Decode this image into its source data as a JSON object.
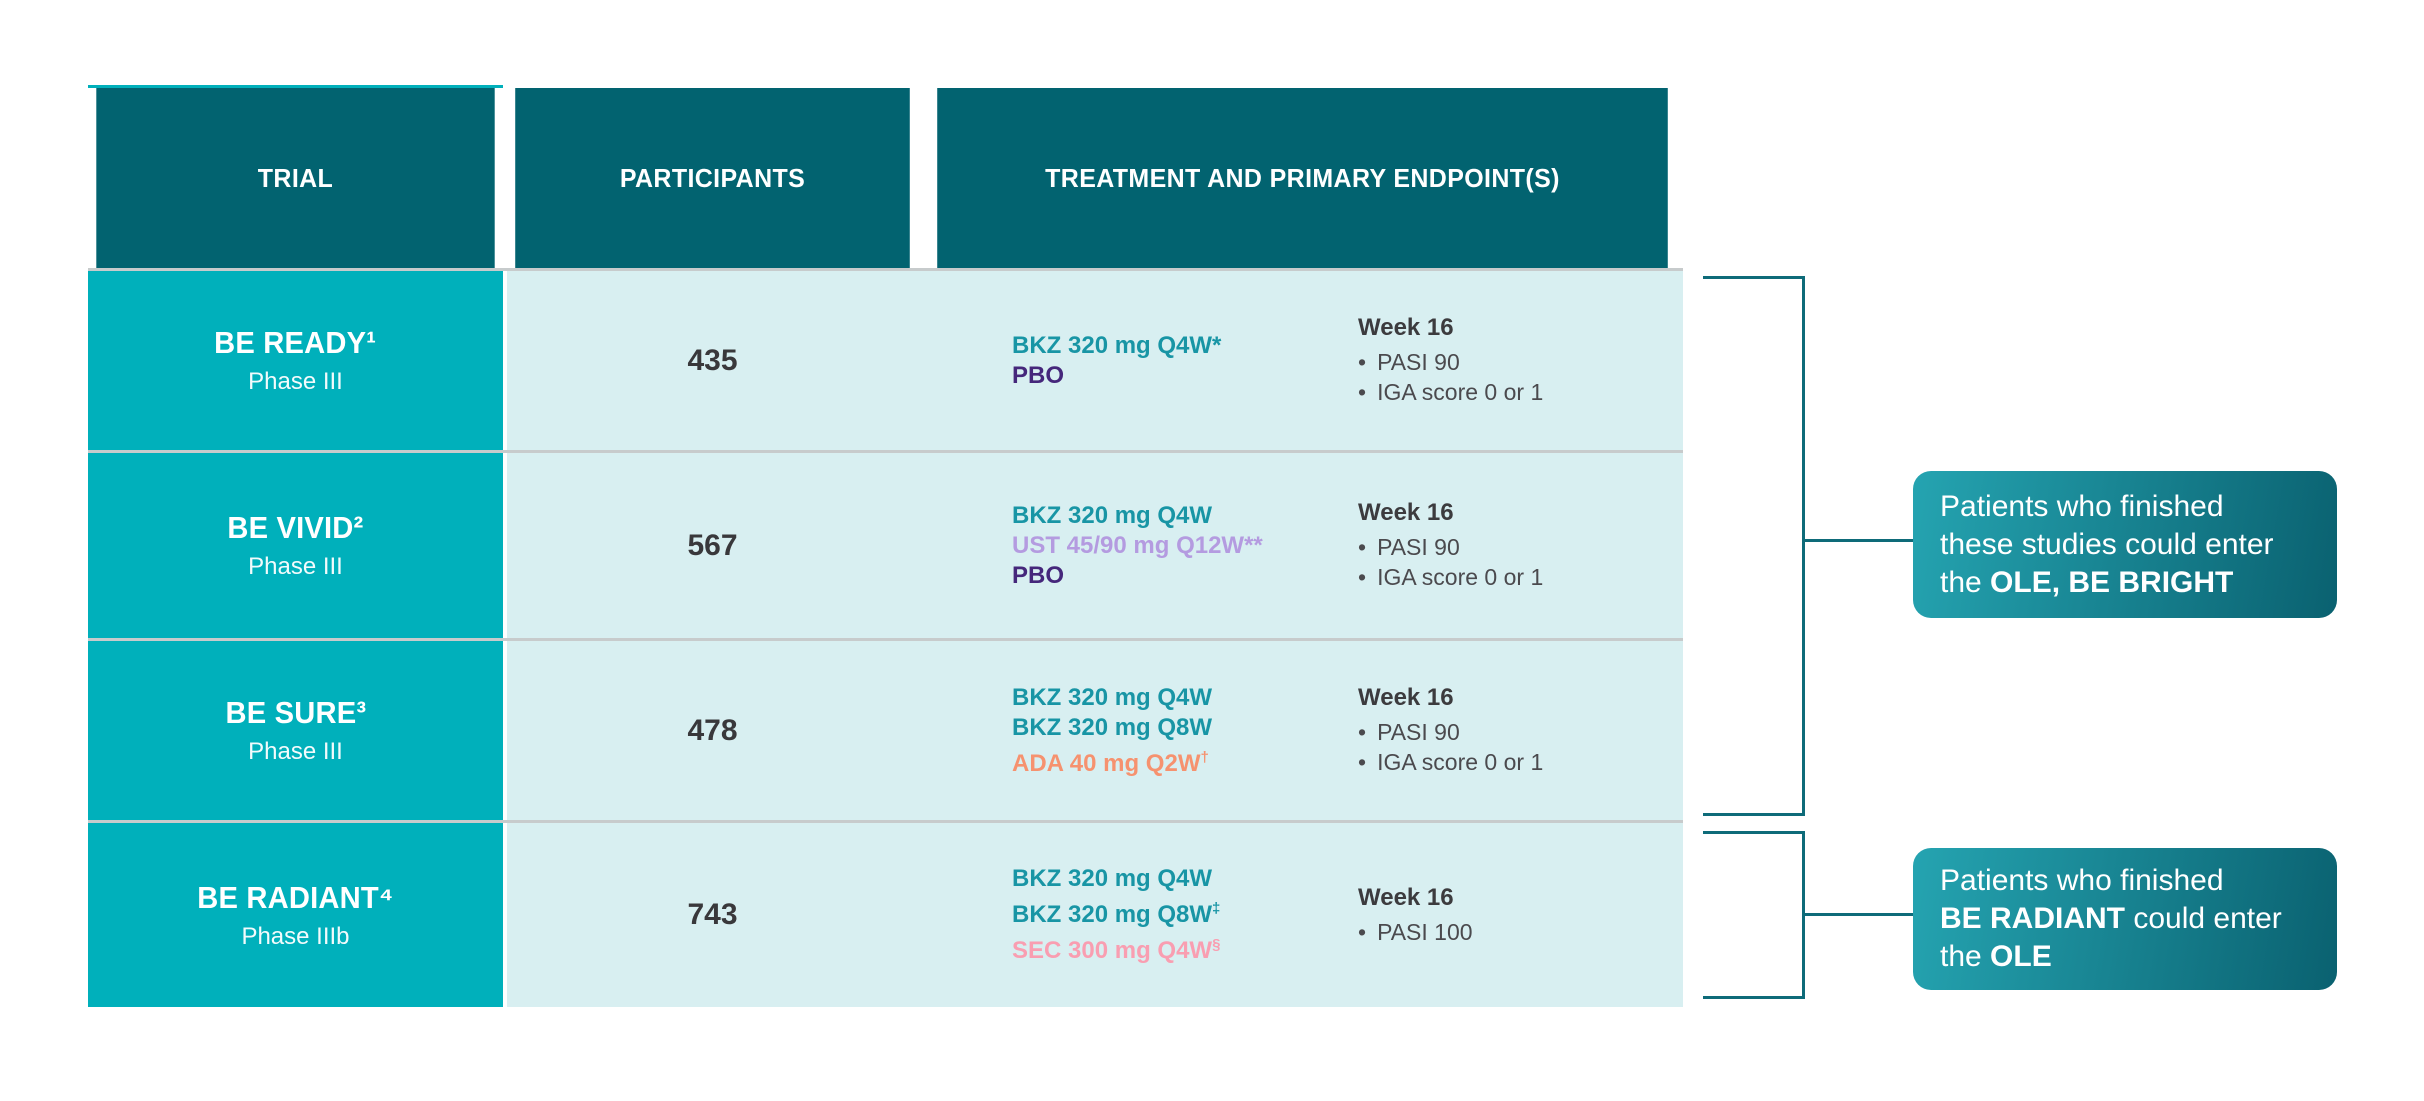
{
  "table": {
    "headers": [
      "TRIAL",
      "PARTICIPANTS",
      "TREATMENT AND PRIMARY ENDPOINT(S)"
    ],
    "rows": [
      {
        "trial": "BE READY¹",
        "phase": "Phase III",
        "participants": "435",
        "treatments": [
          {
            "text": "BKZ 320 mg Q4W*",
            "color": "teal"
          },
          {
            "text": "PBO",
            "color": "purple"
          }
        ],
        "endpoint": {
          "title": "Week 16",
          "bullets": [
            "PASI 90",
            "IGA score 0 or 1"
          ]
        }
      },
      {
        "trial": "BE VIVID²",
        "phase": "Phase III",
        "participants": "567",
        "treatments": [
          {
            "text": "BKZ 320 mg Q4W",
            "color": "teal"
          },
          {
            "text": "UST 45/90 mg Q12W**",
            "color": "lilac"
          },
          {
            "text": "PBO",
            "color": "purple"
          }
        ],
        "endpoint": {
          "title": "Week 16",
          "bullets": [
            "PASI 90",
            "IGA score 0 or 1"
          ]
        }
      },
      {
        "trial": "BE SURE³",
        "phase": "Phase III",
        "participants": "478",
        "treatments": [
          {
            "text": "BKZ 320 mg Q4W",
            "color": "teal"
          },
          {
            "text": "BKZ 320 mg Q8W",
            "color": "teal"
          },
          {
            "text": "ADA 40 mg Q2W",
            "sup": "†",
            "color": "orange"
          }
        ],
        "endpoint": {
          "title": "Week 16",
          "bullets": [
            "PASI 90",
            "IGA score 0 or 1"
          ]
        }
      },
      {
        "trial": "BE RADIANT⁴",
        "phase": "Phase IIIb",
        "participants": "743",
        "treatments": [
          {
            "text": "BKZ 320 mg Q4W",
            "color": "teal"
          },
          {
            "text": "BKZ 320 mg Q8W",
            "sup": "‡",
            "color": "teal"
          },
          {
            "text": "SEC 300 mg Q4W",
            "sup": "§",
            "color": "pink"
          }
        ],
        "endpoint": {
          "title": "Week 16",
          "bullets": [
            "PASI 100"
          ]
        }
      }
    ],
    "bullet_char": "•"
  },
  "callouts": [
    {
      "lines": [
        [
          {
            "t": "Patients who finished"
          }
        ],
        [
          {
            "t": "these studies could enter"
          }
        ],
        [
          {
            "t": "the "
          },
          {
            "t": "OLE, BE BRIGHT",
            "b": true
          }
        ]
      ]
    },
    {
      "lines": [
        [
          {
            "t": "Patients who finished"
          }
        ],
        [
          {
            "t": "BE RADIANT",
            "b": true
          },
          {
            "t": " could enter"
          }
        ],
        [
          {
            "t": "the "
          },
          {
            "t": "OLE",
            "b": true
          }
        ]
      ]
    }
  ],
  "colors": {
    "header_teal": "#026370",
    "trial_turquoise": "#00b0bb",
    "row_mint": "#d8eff1",
    "separator_gray": "#c7cbcc",
    "bracket_teal": "#0e6b79",
    "callout_gradient_start": "#25a4b1",
    "callout_gradient_end": "#0a6170",
    "treatment": {
      "teal": "#1895a5",
      "purple": "#45277b",
      "lilac": "#b49be0",
      "orange": "#f6926f",
      "pink": "#f99eb1"
    },
    "dark_text": "#39383b"
  }
}
